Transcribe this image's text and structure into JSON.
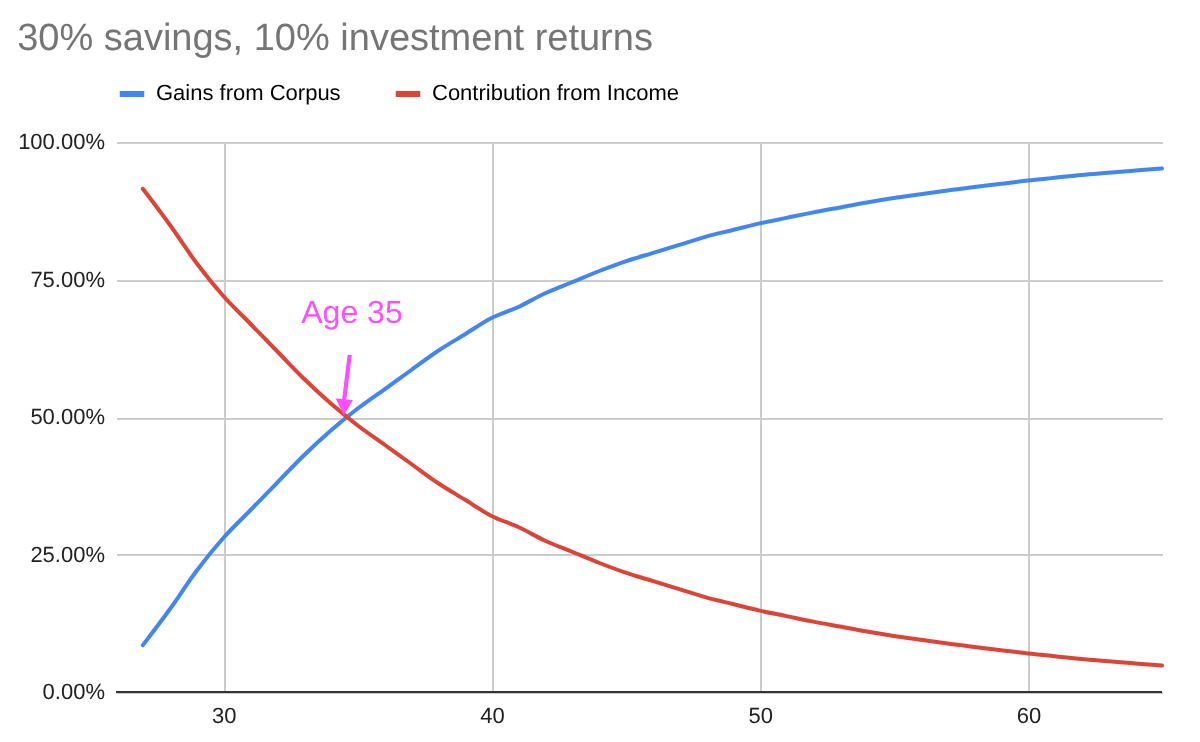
{
  "chart_data": {
    "type": "line",
    "title": "30% savings, 10% investment returns",
    "x": [
      27,
      28,
      29,
      30,
      31,
      32,
      33,
      34,
      35,
      36,
      37,
      38,
      39,
      40,
      41,
      42,
      43,
      44,
      45,
      46,
      47,
      48,
      49,
      50,
      51,
      52,
      53,
      54,
      55,
      56,
      57,
      58,
      59,
      60,
      61,
      62,
      63,
      64,
      65
    ],
    "series": [
      {
        "name": "Gains from Corpus",
        "color": "#4285f4",
        "values": [
          8.5,
          15,
          22,
          28,
          33,
          38,
          43,
          47.5,
          51.5,
          55,
          58.5,
          62,
          65,
          68,
          70,
          72.5,
          74.5,
          76.5,
          78.3,
          79.8,
          81.3,
          82.8,
          84,
          85.2,
          86.2,
          87.2,
          88.1,
          89,
          89.8,
          90.5,
          91.2,
          91.8,
          92.4,
          93,
          93.5,
          94,
          94.4,
          94.8,
          95.2
        ]
      },
      {
        "name": "Contribution from Income",
        "color": "#db4437",
        "values": [
          91.5,
          85,
          78,
          72,
          67,
          62,
          57,
          52.5,
          48.5,
          45,
          41.5,
          38,
          35,
          32,
          30,
          27.5,
          25.5,
          23.5,
          21.7,
          20.2,
          18.7,
          17.2,
          16,
          14.8,
          13.8,
          12.8,
          11.9,
          11,
          10.2,
          9.5,
          8.8,
          8.2,
          7.6,
          7,
          6.5,
          6,
          5.6,
          5.2,
          4.8
        ]
      }
    ],
    "xlim": [
      26,
      65
    ],
    "xticks": [
      30,
      40,
      50,
      60
    ],
    "ylim": [
      0,
      100
    ],
    "yticks": [
      {
        "value": 0,
        "label": "0.00%"
      },
      {
        "value": 25,
        "label": "25.00%"
      },
      {
        "value": 50,
        "label": "50.00%"
      },
      {
        "value": 75,
        "label": "75.00%"
      },
      {
        "value": 100,
        "label": "100.00%"
      }
    ],
    "grid": true,
    "legend": "top",
    "annotations": [
      {
        "text": "Age 35",
        "x": 34.5,
        "y": 50
      }
    ]
  }
}
